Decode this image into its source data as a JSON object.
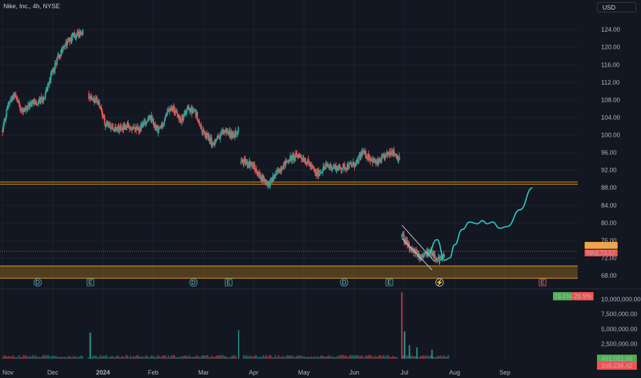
{
  "header": {
    "title": "Nike, Inc., 4h, NYSE",
    "currency": "USD"
  },
  "colors": {
    "background": "#131722",
    "up": "#26a69a",
    "down": "#ef5350",
    "grid": "#1e222d",
    "support": "#f0a21a",
    "projection": "#2ec5c0",
    "channel": "#d1d4dc",
    "price_line": "#ef5350",
    "pre_badge": "#f7a23a"
  },
  "badges": {
    "price_label": "NKE",
    "price_value": "73.57",
    "pre_label": "Pre",
    "pre_value": "73.60"
  },
  "sentiment": {
    "buy": "73.1%",
    "sell": "26.9%"
  },
  "volume_labels": {
    "last_up": "402,021.00",
    "last_down": "108,236.42"
  },
  "events": [
    {
      "letter": "D",
      "kind": "dividend",
      "t": 0.7
    },
    {
      "letter": "E",
      "kind": "earnings",
      "t": 1.75
    },
    {
      "letter": "D",
      "kind": "dividend",
      "t": 3.8
    },
    {
      "letter": "E",
      "kind": "earnings",
      "t": 4.5
    },
    {
      "letter": "D",
      "kind": "dividend",
      "t": 6.8
    },
    {
      "letter": "E",
      "kind": "earnings",
      "t": 7.7
    },
    {
      "letter": "⚡",
      "kind": "split",
      "t": 8.7
    },
    {
      "letter": "E",
      "kind": "earnings",
      "t": 10.75
    }
  ],
  "chart_data": {
    "type": "candlestick",
    "title": "Nike, Inc., 4h, NYSE",
    "x_axis": {
      "unit": "months since Nov 2023",
      "range": [
        -0.05,
        11.45
      ],
      "ticks": [
        {
          "label": "Nov",
          "t": 0
        },
        {
          "label": "Dec",
          "t": 1
        },
        {
          "label": "2024",
          "t": 2
        },
        {
          "label": "Feb",
          "t": 3
        },
        {
          "label": "Mar",
          "t": 4
        },
        {
          "label": "Apr",
          "t": 5
        },
        {
          "label": "May",
          "t": 6
        },
        {
          "label": "Jun",
          "t": 7
        },
        {
          "label": "Jul",
          "t": 8
        },
        {
          "label": "Aug",
          "t": 9
        },
        {
          "label": "Sep",
          "t": 10
        }
      ]
    },
    "price_axis": {
      "range": [
        66.6,
        127.0
      ],
      "ticks": [
        "124.00",
        "120.00",
        "116.00",
        "112.00",
        "108.00",
        "104.00",
        "100.00",
        "96.00",
        "92.00",
        "88.00",
        "84.00",
        "80.00",
        "76.00",
        "72.00",
        "68.00"
      ]
    },
    "volume_axis": {
      "range": [
        0,
        11800000
      ],
      "ticks": [
        "10,000,000.00",
        "7,500,000.00",
        "5,000,000.00",
        "2,500,000.00"
      ]
    },
    "price_anchors": [
      [
        0.0,
        101.0
      ],
      [
        0.12,
        107.5
      ],
      [
        0.25,
        109.5
      ],
      [
        0.4,
        105.0
      ],
      [
        0.6,
        107.5
      ],
      [
        0.8,
        108.0
      ],
      [
        0.95,
        113.0
      ],
      [
        1.1,
        117.5
      ],
      [
        1.3,
        121.5
      ],
      [
        1.45,
        122.8
      ],
      [
        1.6,
        123.5
      ],
      [
        1.72,
        109.0
      ],
      [
        1.9,
        107.5
      ],
      [
        2.05,
        102.5
      ],
      [
        2.3,
        101.5
      ],
      [
        2.5,
        102.0
      ],
      [
        2.7,
        101.0
      ],
      [
        2.95,
        104.0
      ],
      [
        3.1,
        100.5
      ],
      [
        3.35,
        107.0
      ],
      [
        3.55,
        103.5
      ],
      [
        3.7,
        106.0
      ],
      [
        3.85,
        105.0
      ],
      [
        4.0,
        100.5
      ],
      [
        4.2,
        98.0
      ],
      [
        4.4,
        101.0
      ],
      [
        4.6,
        100.0
      ],
      [
        4.7,
        101.5
      ],
      [
        4.75,
        94.0
      ],
      [
        4.95,
        93.5
      ],
      [
        5.1,
        91.0
      ],
      [
        5.3,
        88.8
      ],
      [
        5.5,
        92.0
      ],
      [
        5.7,
        94.5
      ],
      [
        5.9,
        95.5
      ],
      [
        6.1,
        93.5
      ],
      [
        6.25,
        91.0
      ],
      [
        6.45,
        93.0
      ],
      [
        6.7,
        92.5
      ],
      [
        6.9,
        93.0
      ],
      [
        7.05,
        93.5
      ],
      [
        7.15,
        96.0
      ],
      [
        7.3,
        95.0
      ],
      [
        7.45,
        93.5
      ],
      [
        7.6,
        95.0
      ],
      [
        7.75,
        96.5
      ],
      [
        7.9,
        94.5
      ],
      [
        7.95,
        77.0
      ],
      [
        8.1,
        74.5
      ],
      [
        8.3,
        72.5
      ],
      [
        8.5,
        73.5
      ],
      [
        8.65,
        71.5
      ],
      [
        8.8,
        72.5
      ]
    ],
    "volume": {
      "base_range": [
        200000,
        650000
      ],
      "spikes": [
        {
          "t": 1.75,
          "value": 4400000
        },
        {
          "t": 4.7,
          "value": 4800000
        },
        {
          "t": 7.95,
          "value": 11200000
        },
        {
          "t": 8.0,
          "value": 4600000
        },
        {
          "t": 8.1,
          "value": 2300000
        },
        {
          "t": 8.25,
          "value": 1900000
        },
        {
          "t": 8.55,
          "value": 1500000
        }
      ]
    },
    "support_levels": [
      {
        "type": "line",
        "low": 88.8,
        "high": 89.3
      },
      {
        "type": "zone",
        "low": 67.4,
        "high": 70.2
      }
    ],
    "current_price": 73.57,
    "premarket_price": 73.6,
    "channel": {
      "upper": [
        [
          7.95,
          79.5
        ],
        [
          8.6,
          71.2
        ]
      ],
      "lower": [
        [
          7.95,
          76.5
        ],
        [
          8.55,
          69.3
        ]
      ]
    },
    "projection": [
      [
        8.45,
        72.5
      ],
      [
        8.65,
        76.2
      ],
      [
        8.8,
        71.5
      ],
      [
        8.9,
        72.0
      ],
      [
        9.0,
        75.0
      ],
      [
        9.15,
        78.5
      ],
      [
        9.3,
        80.2
      ],
      [
        9.45,
        79.8
      ],
      [
        9.55,
        80.5
      ],
      [
        9.65,
        79.8
      ],
      [
        9.75,
        80.2
      ],
      [
        9.9,
        78.8
      ],
      [
        10.05,
        79.2
      ],
      [
        10.3,
        83.0
      ],
      [
        10.55,
        88.0
      ]
    ]
  }
}
